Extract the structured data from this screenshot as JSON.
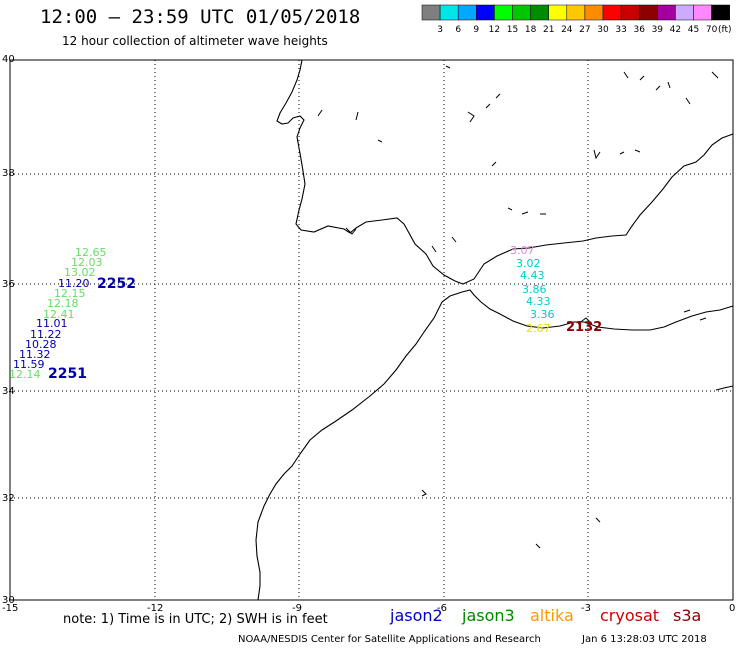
{
  "header": {
    "title": "12:00 – 23:59 UTC 01/05/2018",
    "subtitle": "12 hour collection of altimeter wave heights"
  },
  "colorbar": {
    "unit": "(ft)",
    "colors": [
      "#7f7f7f",
      "#00e5e5",
      "#00a8ff",
      "#0000ff",
      "#00ff00",
      "#00c800",
      "#008c00",
      "#ffff00",
      "#ffc800",
      "#ff8c00",
      "#ff0000",
      "#c80000",
      "#8c0000",
      "#a000a0",
      "#ccaaff",
      "#ff88ff",
      "#000000"
    ],
    "labels": [
      "3",
      "6",
      "9",
      "12",
      "15",
      "18",
      "21",
      "24",
      "27",
      "30",
      "33",
      "36",
      "39",
      "42",
      "45",
      "70"
    ]
  },
  "axes": {
    "lon_ticks": [
      "-15",
      "-12",
      "-9",
      "-6",
      "-3",
      "0"
    ],
    "lat_ticks": [
      "40",
      "38",
      "36",
      "34",
      "32",
      "30"
    ]
  },
  "tracks": {
    "west_labels": [
      {
        "text": "12.65",
        "color": "#66dd66"
      },
      {
        "text": "12.03",
        "color": "#66dd66"
      },
      {
        "text": "13.02",
        "color": "#66dd66"
      },
      {
        "text": "11.20",
        "color": "#0000aa"
      },
      {
        "text": "12.15",
        "color": "#66dd66"
      },
      {
        "text": "12.18",
        "color": "#66dd66"
      },
      {
        "text": "12.41",
        "color": "#66dd66"
      },
      {
        "text": "11.01",
        "color": "#0000aa"
      },
      {
        "text": "11.22",
        "color": "#0000aa"
      },
      {
        "text": "10.28",
        "color": "#0000aa"
      },
      {
        "text": "11.32",
        "color": "#0000aa"
      },
      {
        "text": "11.59",
        "color": "#0000aa"
      },
      {
        "text": "12.14",
        "color": "#66dd66"
      }
    ],
    "time_2252": "2252",
    "time_2251": "2251",
    "east_labels": [
      {
        "text": "3.07",
        "color": "#dd88dd"
      },
      {
        "text": "3.02",
        "color": "#00cccc"
      },
      {
        "text": "4.43",
        "color": "#00cccc"
      },
      {
        "text": "3.86",
        "color": "#00cccc"
      },
      {
        "text": "4.33",
        "color": "#00cccc"
      },
      {
        "text": "3.36",
        "color": "#00cccc"
      },
      {
        "text": "2.67",
        "color": "#e8e000"
      }
    ],
    "time_2132": "2132"
  },
  "legend": {
    "note": "note: 1) Time is in UTC; 2) SWH is in feet",
    "items": [
      {
        "text": "jason2",
        "color": "#0000cc"
      },
      {
        "text": "jason3",
        "color": "#008800"
      },
      {
        "text": "altika",
        "color": "#ff9900"
      },
      {
        "text": "cryosat",
        "color": "#cc0000"
      },
      {
        "text": "s3a",
        "color": "#880000"
      }
    ]
  },
  "footer": {
    "source": "NOAA/NESDIS Center for Satellite Applications and Research",
    "timestamp": "Jan  6 13:28:03 UTC 2018"
  }
}
